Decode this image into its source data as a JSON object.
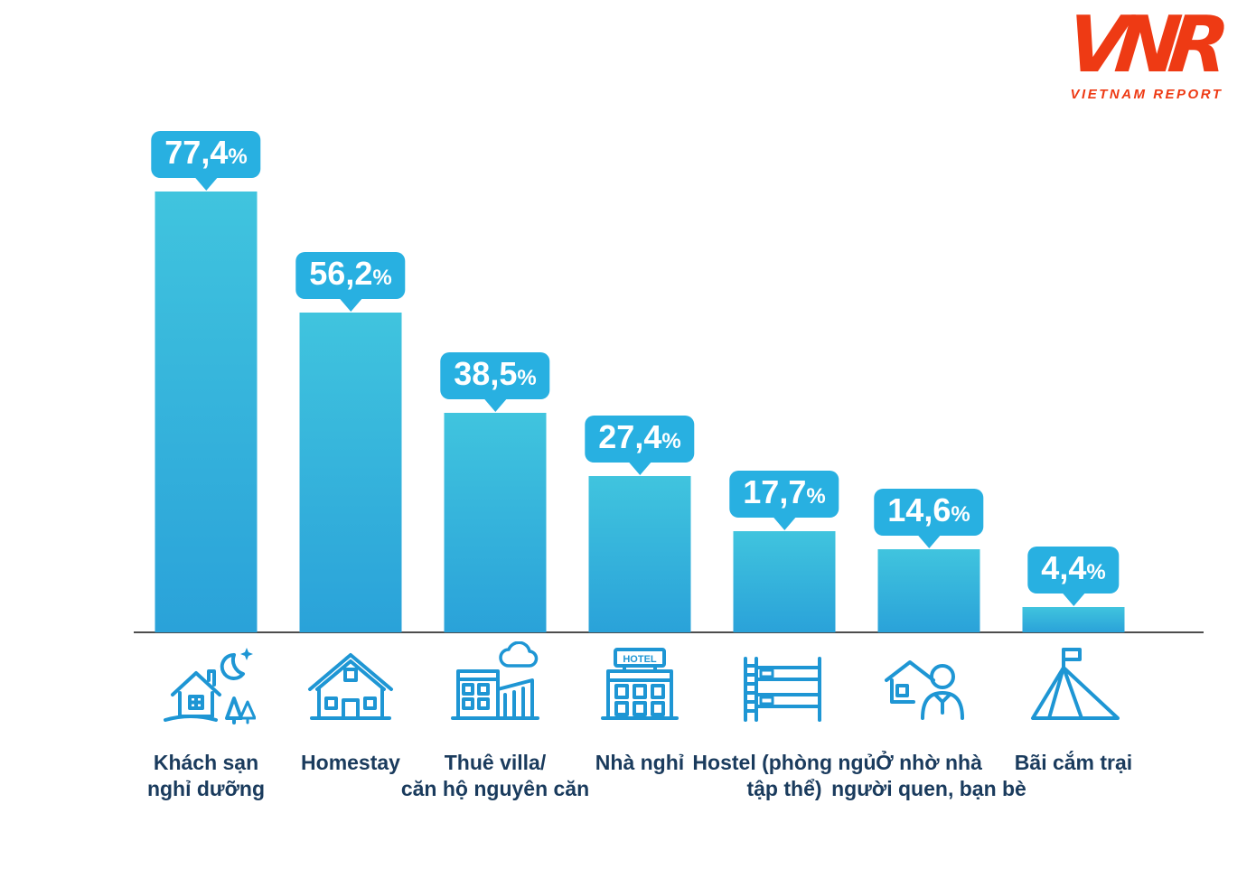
{
  "logo": {
    "text": "VNR",
    "subtext": "VIETNAM REPORT"
  },
  "theme": {
    "bar_top": "#40c4de",
    "bar_bottom": "#2aa2d9",
    "bubble": "#28b0e1",
    "icon_stroke": "#1e96d4",
    "label_color": "#1a3b5d",
    "logo_red": "#ee3a14",
    "baseline": "#4d4d4d"
  },
  "chart_data": {
    "type": "bar",
    "title": "",
    "unit": "%",
    "ylim": [
      0,
      100
    ],
    "grid": false,
    "legend": false,
    "categories": [
      "Khách sạn nghỉ dưỡng",
      "Homestay",
      "Thuê villa/ căn hộ nguyên căn",
      "Nhà nghỉ",
      "Hostel (phòng ngủ tập thể)",
      "Ở nhờ nhà người quen, bạn bè",
      "Bãi cắm trại"
    ],
    "values": [
      77.4,
      56.2,
      38.5,
      27.4,
      17.7,
      14.6,
      4.4
    ],
    "points": [
      {
        "value": 77.4,
        "value_text": "77,4",
        "label": "Khách sạn\nnghỉ dưỡng",
        "icon": "resort-night-icon"
      },
      {
        "value": 56.2,
        "value_text": "56,2",
        "label": "Homestay",
        "icon": "homestay-icon"
      },
      {
        "value": 38.5,
        "value_text": "38,5",
        "label": "Thuê villa/\ncăn hộ nguyên căn",
        "icon": "villa-icon"
      },
      {
        "value": 27.4,
        "value_text": "27,4",
        "label": "Nhà nghỉ",
        "icon": "hotel-icon",
        "icon_text": "HOTEL"
      },
      {
        "value": 17.7,
        "value_text": "17,7",
        "label": "Hostel (phòng ngủ\ntập thể)",
        "icon": "bunk-bed-icon"
      },
      {
        "value": 14.6,
        "value_text": "14,6",
        "label": "Ở nhờ nhà\nngười quen, bạn bè",
        "icon": "guest-house-icon"
      },
      {
        "value": 4.4,
        "value_text": "4,4",
        "label": "Bãi cắm trại",
        "icon": "tent-icon"
      }
    ]
  }
}
